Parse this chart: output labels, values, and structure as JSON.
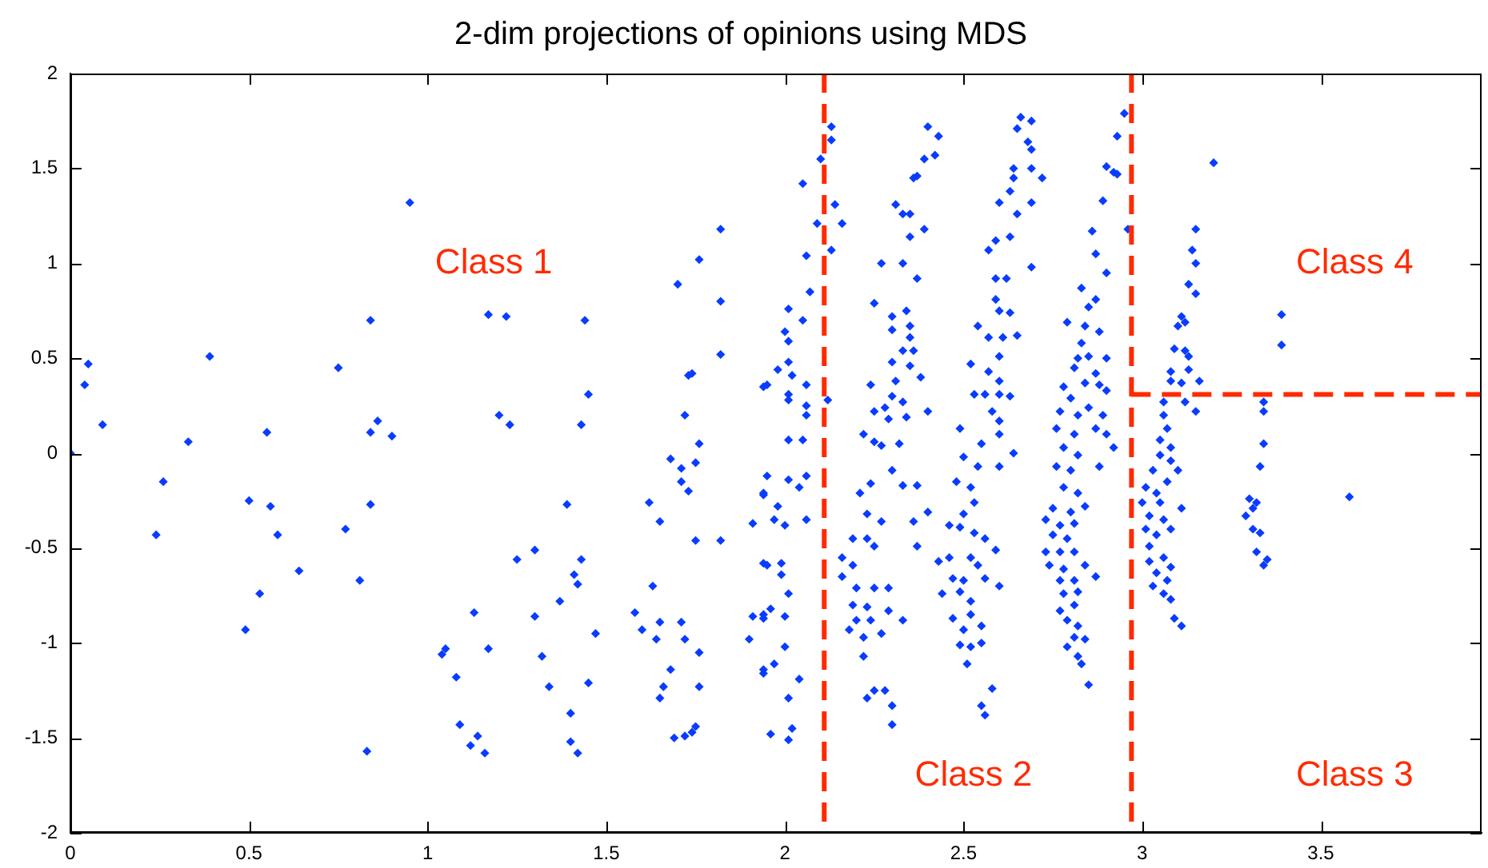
{
  "chart_data": {
    "type": "scatter",
    "title": "2-dim projections of opinions using MDS",
    "xlim": [
      0,
      3.95
    ],
    "ylim": [
      -2,
      2
    ],
    "xticks": [
      0,
      0.5,
      1,
      1.5,
      2,
      2.5,
      3,
      3.5
    ],
    "yticks": [
      -2,
      -1.5,
      -1,
      -0.5,
      0,
      0.5,
      1,
      1.5,
      2
    ],
    "grid": false,
    "legend": false,
    "marker": "diamond",
    "ref_lines": [
      {
        "axis": "x",
        "value": 2.11,
        "color": "#ff2a00",
        "line_style": "dashed"
      },
      {
        "axis": "x",
        "value": 2.97,
        "color": "#ff2a00",
        "line_style": "dashed"
      },
      {
        "axis": "y",
        "value": 0.31,
        "color": "#ff2a00",
        "line_style": "dashed"
      }
    ],
    "annotations": [
      "Class 1",
      "Class 2",
      "Class 3",
      "Class 4"
    ],
    "series": [
      {
        "color": "#0a3cff",
        "x": [
          0,
          0.05,
          0.04,
          0.09,
          0.24,
          0.26,
          0.33,
          0.39,
          0.49,
          0.5,
          0.53,
          0.55,
          0.56,
          0.58,
          0.64,
          0.75,
          0.77,
          0.81,
          0.83,
          0.84,
          0.84,
          0.84,
          0.86,
          0.9,
          0.95,
          1.04,
          1.05,
          1.08,
          1.09,
          1.12,
          1.13,
          1.14,
          1.16,
          1.17,
          1.17,
          1.2,
          1.22,
          1.23,
          1.25,
          1.3,
          1.3,
          1.32,
          1.34,
          1.37,
          1.39,
          1.4,
          1.4,
          1.41,
          1.42,
          1.42,
          1.43,
          1.43,
          1.44,
          1.45,
          1.45,
          1.47,
          1.58,
          1.6,
          1.62,
          1.63,
          1.64,
          1.65,
          1.65,
          1.65,
          1.66,
          1.68,
          1.68,
          1.69,
          1.7,
          1.71,
          1.71,
          1.71,
          1.72,
          1.72,
          1.73,
          1.73,
          1.72,
          1.74,
          1.74,
          1.75,
          1.75,
          1.75,
          1.76,
          1.76,
          1.76,
          1.76,
          1.82,
          1.82,
          1.82,
          1.82,
          1.9,
          1.91,
          1.91,
          1.94,
          1.94,
          1.94,
          1.94,
          1.94,
          2.05,
          2.1,
          2.13,
          2.13,
          2.14,
          2.16,
          2.09,
          2.13,
          2.06,
          2.07,
          2.01,
          2.05,
          2,
          2.01,
          1.98,
          2.01,
          1.95,
          2.02,
          2.06,
          2.01,
          2.12,
          2.01,
          2.06,
          2.06,
          2.01,
          2.05,
          1.95,
          2.01,
          2.06,
          2.04,
          1.94,
          1.98,
          1.97,
          2,
          2.06,
          1.95,
          1.99,
          1.99,
          2.01,
          1.96,
          2,
          1.94,
          2,
          1.97,
          1.94,
          2.04,
          2.01,
          1.96,
          2.01,
          2.02,
          2.4,
          2.43,
          2.39,
          2.42,
          2.36,
          2.37,
          2.31,
          2.33,
          2.35,
          2.39,
          2.35,
          2.27,
          2.33,
          2.37,
          2.25,
          2.3,
          2.34,
          2.3,
          2.35,
          2.35,
          2.33,
          2.36,
          2.3,
          2.35,
          2.31,
          2.38,
          2.24,
          2.3,
          2.28,
          2.33,
          2.4,
          2.25,
          2.29,
          2.34,
          2.22,
          2.25,
          2.27,
          2.32,
          2.3,
          2.24,
          2.33,
          2.37,
          2.21,
          2.23,
          2.27,
          2.36,
          2.4,
          2.19,
          2.23,
          2.16,
          2.19,
          2.37,
          2.25,
          2.16,
          2.2,
          2.25,
          2.29,
          2.19,
          2.23,
          2.29,
          2.2,
          2.24,
          2.33,
          2.18,
          2.27,
          2.22,
          2.22,
          2.23,
          2.25,
          2.28,
          2.3,
          2.3,
          2.66,
          2.69,
          2.65,
          2.68,
          2.69,
          2.64,
          2.64,
          2.63,
          2.72,
          2.69,
          2.6,
          2.69,
          2.65,
          2.63,
          2.57,
          2.59,
          2.69,
          2.59,
          2.62,
          2.59,
          2.6,
          2.63,
          2.54,
          2.57,
          2.61,
          2.65,
          2.6,
          2.52,
          2.57,
          2.6,
          2.53,
          2.56,
          2.6,
          2.63,
          2.58,
          2.6,
          2.49,
          2.55,
          2.6,
          2.5,
          2.64,
          2.54,
          2.6,
          2.48,
          2.52,
          2.53,
          2.5,
          2.49,
          2.53,
          2.46,
          2.56,
          2.59,
          2.43,
          2.46,
          2.52,
          2.54,
          2.47,
          2.5,
          2.56,
          2.6,
          2.44,
          2.49,
          2.52,
          2.47,
          2.52,
          2.5,
          2.55,
          2.49,
          2.52,
          2.55,
          2.51,
          2.58,
          2.55,
          2.56,
          2.95,
          2.93,
          2.9,
          2.92,
          2.93,
          2.96,
          2.89,
          2.86,
          2.87,
          2.9,
          2.83,
          2.87,
          2.85,
          2.79,
          2.84,
          2.88,
          2.83,
          2.82,
          2.85,
          2.9,
          2.81,
          2.87,
          2.78,
          2.84,
          2.88,
          2.9,
          2.8,
          2.85,
          2.77,
          2.82,
          2.89,
          2.76,
          2.81,
          2.87,
          2.78,
          2.82,
          2.9,
          2.92,
          2.76,
          2.8,
          2.88,
          2.78,
          2.82,
          2.75,
          2.8,
          2.84,
          2.73,
          2.77,
          2.81,
          2.75,
          2.79,
          2.73,
          2.77,
          2.81,
          2.74,
          2.78,
          2.84,
          2.87,
          2.77,
          2.81,
          2.78,
          2.82,
          2.77,
          2.81,
          2.79,
          2.82,
          2.81,
          2.84,
          2.79,
          2.82,
          2.83,
          2.85,
          3.2,
          3.15,
          3.14,
          3.15,
          3.13,
          3.15,
          3.11,
          3.12,
          3.1,
          3.09,
          3.12,
          3.13,
          3.08,
          3.13,
          3.16,
          3.08,
          3.11,
          3.12,
          3.15,
          3.06,
          3.06,
          3.07,
          3.05,
          3.08,
          3.05,
          3.08,
          3.1,
          3.03,
          3.07,
          3.01,
          3.04,
          3,
          3.05,
          3.11,
          3.02,
          3.06,
          3.01,
          3.04,
          3.08,
          3.02,
          3.06,
          3.02,
          3.08,
          3.04,
          3.07,
          3.03,
          3.06,
          3.08,
          3.09,
          3.11,
          3.34,
          3.34,
          3.34,
          3.33,
          3.3,
          3.32,
          3.31,
          3.29,
          3.31,
          3.33,
          3.32,
          3.35,
          3.34,
          3.39,
          3.39,
          3.58
        ],
        "values": [
          0,
          0.47,
          0.36,
          0.15,
          -0.43,
          -0.15,
          0.06,
          0.51,
          -0.93,
          -0.25,
          -0.74,
          0.11,
          -0.28,
          -0.43,
          -0.62,
          0.45,
          -0.4,
          -0.67,
          -1.57,
          0.11,
          0.7,
          -0.27,
          0.17,
          0.09,
          1.32,
          -1.06,
          -1.03,
          -1.18,
          -1.43,
          -1.54,
          -0.84,
          -1.49,
          -1.58,
          0.73,
          -1.03,
          0.2,
          0.72,
          0.15,
          -0.56,
          -0.51,
          -0.86,
          -1.07,
          -1.23,
          -0.78,
          -0.27,
          -1.37,
          -1.52,
          -0.64,
          -0.69,
          -1.58,
          0.15,
          -0.56,
          0.7,
          0.31,
          -1.21,
          -0.95,
          -0.84,
          -0.93,
          -0.26,
          -0.7,
          -0.98,
          -1.29,
          -0.36,
          -0.89,
          -1.23,
          -0.03,
          -1.14,
          -1.5,
          0.89,
          -0.89,
          -0.08,
          -0.15,
          -0.98,
          0.2,
          0.41,
          -0.2,
          -1.49,
          -1.47,
          0.42,
          -1.44,
          -0.05,
          -0.46,
          1.02,
          -1.05,
          0.05,
          -1.23,
          1.18,
          0.8,
          -0.46,
          0.52,
          -0.98,
          -0.86,
          -0.37,
          0.35,
          -0.22,
          -0.58,
          -0.85,
          -1.16,
          1.42,
          1.55,
          1.72,
          1.65,
          1.31,
          1.21,
          1.21,
          1.07,
          1.04,
          0.85,
          0.76,
          0.7,
          0.64,
          0.59,
          0.44,
          0.48,
          0.36,
          0.41,
          0.36,
          0.31,
          0.28,
          0.28,
          0.25,
          0.2,
          0.07,
          0.07,
          -0.12,
          -0.14,
          -0.12,
          -0.18,
          -0.21,
          -0.28,
          -0.35,
          -0.38,
          -0.35,
          -0.59,
          -0.58,
          -0.64,
          -0.74,
          -0.82,
          -0.86,
          -0.87,
          -1.02,
          -1.11,
          -1.14,
          -1.19,
          -1.29,
          -1.48,
          -1.51,
          -1.45,
          1.72,
          1.67,
          1.55,
          1.57,
          1.45,
          1.46,
          1.31,
          1.26,
          1.26,
          1.18,
          1.14,
          1,
          1,
          0.92,
          0.79,
          0.72,
          0.75,
          0.65,
          0.67,
          0.61,
          0.54,
          0.54,
          0.48,
          0.46,
          0.38,
          0.4,
          0.36,
          0.3,
          0.24,
          0.27,
          0.22,
          0.22,
          0.18,
          0.19,
          0.1,
          0.06,
          0.04,
          0.05,
          -0.09,
          -0.16,
          -0.17,
          -0.17,
          -0.21,
          -0.32,
          -0.36,
          -0.36,
          -0.31,
          -0.45,
          -0.45,
          -0.55,
          -0.59,
          -0.49,
          -0.49,
          -0.65,
          -0.71,
          -0.71,
          -0.71,
          -0.8,
          -0.81,
          -0.83,
          -0.88,
          -0.88,
          -0.88,
          -0.93,
          -0.95,
          -0.97,
          -1.07,
          -1.29,
          -1.25,
          -1.25,
          -1.33,
          -1.43,
          1.77,
          1.75,
          1.71,
          1.64,
          1.6,
          1.5,
          1.45,
          1.38,
          1.45,
          1.5,
          1.32,
          1.32,
          1.26,
          1.14,
          1.07,
          1.12,
          0.98,
          0.92,
          0.92,
          0.81,
          0.75,
          0.74,
          0.67,
          0.61,
          0.61,
          0.62,
          0.51,
          0.47,
          0.43,
          0.38,
          0.31,
          0.31,
          0.31,
          0.3,
          0.22,
          0.17,
          0.13,
          0.05,
          0.1,
          -0.02,
          0,
          -0.07,
          -0.07,
          -0.15,
          -0.18,
          -0.26,
          -0.32,
          -0.39,
          -0.42,
          -0.38,
          -0.45,
          -0.51,
          -0.57,
          -0.55,
          -0.55,
          -0.59,
          -0.66,
          -0.67,
          -0.66,
          -0.7,
          -0.74,
          -0.73,
          -0.78,
          -0.87,
          -0.85,
          -0.93,
          -0.91,
          -1.01,
          -1.02,
          -1,
          -1.11,
          -1.24,
          -1.33,
          -1.38,
          1.79,
          1.67,
          1.51,
          1.48,
          1.47,
          1.18,
          1.33,
          1.17,
          1.05,
          0.95,
          0.87,
          0.81,
          0.77,
          0.69,
          0.67,
          0.64,
          0.58,
          0.5,
          0.51,
          0.5,
          0.45,
          0.42,
          0.35,
          0.37,
          0.36,
          0.33,
          0.29,
          0.24,
          0.22,
          0.2,
          0.2,
          0.13,
          0.1,
          0.13,
          0.03,
          -0.01,
          0.1,
          0.03,
          -0.07,
          -0.09,
          -0.07,
          -0.18,
          -0.21,
          -0.29,
          -0.31,
          -0.28,
          -0.35,
          -0.38,
          -0.37,
          -0.43,
          -0.45,
          -0.52,
          -0.52,
          -0.52,
          -0.59,
          -0.61,
          -0.59,
          -0.65,
          -0.67,
          -0.67,
          -0.74,
          -0.73,
          -0.83,
          -0.8,
          -0.88,
          -0.91,
          -0.97,
          -0.98,
          -1.02,
          -1.07,
          -1.11,
          -1.22,
          1.53,
          1.18,
          1.07,
          1,
          0.89,
          0.84,
          0.72,
          0.69,
          0.67,
          0.55,
          0.54,
          0.51,
          0.43,
          0.44,
          0.38,
          0.38,
          0.37,
          0.27,
          0.22,
          0.27,
          0.2,
          0.13,
          0.07,
          0.03,
          -0.01,
          -0.04,
          -0.09,
          -0.09,
          -0.15,
          -0.18,
          -0.21,
          -0.26,
          -0.26,
          -0.29,
          -0.33,
          -0.35,
          -0.4,
          -0.43,
          -0.4,
          -0.49,
          -0.55,
          -0.57,
          -0.6,
          -0.63,
          -0.67,
          -0.7,
          -0.74,
          -0.77,
          -0.87,
          -0.91,
          0.27,
          0.22,
          0.05,
          -0.07,
          -0.24,
          -0.26,
          -0.29,
          -0.33,
          -0.4,
          -0.42,
          -0.52,
          -0.56,
          -0.59,
          0.73,
          0.57,
          -0.23
        ]
      }
    ]
  }
}
